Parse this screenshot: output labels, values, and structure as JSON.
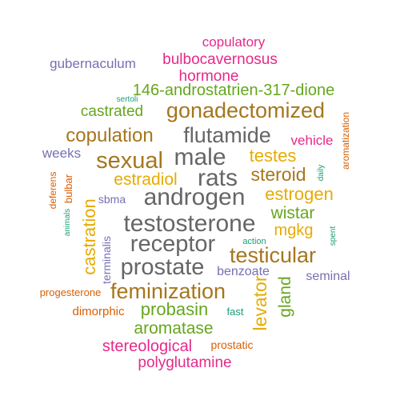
{
  "palette": {
    "teal": "#1b9e77",
    "orange": "#d95f02",
    "purple": "#7570b3",
    "magenta": "#e7298a",
    "green": "#66a61e",
    "gold": "#e6ab02",
    "brown": "#a6761d",
    "gray": "#666666"
  },
  "words": [
    {
      "text": "copulatory",
      "color": "magenta"
    },
    {
      "text": "bulbocavernosus",
      "color": "magenta"
    },
    {
      "text": "gubernaculum",
      "color": "purple"
    },
    {
      "text": "hormone",
      "color": "magenta"
    },
    {
      "text": "146-androstatrien-317-dione",
      "color": "green"
    },
    {
      "text": "sertoli",
      "color": "teal"
    },
    {
      "text": "castrated",
      "color": "green"
    },
    {
      "text": "gonadectomized",
      "color": "brown"
    },
    {
      "text": "aromatization",
      "color": "orange"
    },
    {
      "text": "copulation",
      "color": "brown"
    },
    {
      "text": "flutamide",
      "color": "gray"
    },
    {
      "text": "vehicle",
      "color": "magenta"
    },
    {
      "text": "weeks",
      "color": "purple"
    },
    {
      "text": "sexual",
      "color": "brown"
    },
    {
      "text": "male",
      "color": "gray"
    },
    {
      "text": "testes",
      "color": "gold"
    },
    {
      "text": "daily",
      "color": "teal"
    },
    {
      "text": "estradiol",
      "color": "gold"
    },
    {
      "text": "rats",
      "color": "gray"
    },
    {
      "text": "steroid",
      "color": "brown"
    },
    {
      "text": "deferens",
      "color": "orange"
    },
    {
      "text": "bulbar",
      "color": "orange"
    },
    {
      "text": "sbma",
      "color": "purple"
    },
    {
      "text": "androgen",
      "color": "gray"
    },
    {
      "text": "estrogen",
      "color": "gold"
    },
    {
      "text": "animals",
      "color": "teal"
    },
    {
      "text": "castration",
      "color": "gold"
    },
    {
      "text": "terminalis",
      "color": "purple"
    },
    {
      "text": "testosterone",
      "color": "gray"
    },
    {
      "text": "wistar",
      "color": "green"
    },
    {
      "text": "mgkg",
      "color": "gold"
    },
    {
      "text": "spent",
      "color": "teal"
    },
    {
      "text": "receptor",
      "color": "gray"
    },
    {
      "text": "action",
      "color": "teal"
    },
    {
      "text": "testicular",
      "color": "brown"
    },
    {
      "text": "prostate",
      "color": "gray"
    },
    {
      "text": "benzoate",
      "color": "purple"
    },
    {
      "text": "seminal",
      "color": "purple"
    },
    {
      "text": "gland",
      "color": "green"
    },
    {
      "text": "progesterone",
      "color": "orange"
    },
    {
      "text": "feminization",
      "color": "brown"
    },
    {
      "text": "dimorphic",
      "color": "orange"
    },
    {
      "text": "probasin",
      "color": "green"
    },
    {
      "text": "fast",
      "color": "teal"
    },
    {
      "text": "levator",
      "color": "gold"
    },
    {
      "text": "aromatase",
      "color": "green"
    },
    {
      "text": "stereological",
      "color": "magenta"
    },
    {
      "text": "prostatic",
      "color": "orange"
    },
    {
      "text": "polyglutamine",
      "color": "magenta"
    }
  ]
}
